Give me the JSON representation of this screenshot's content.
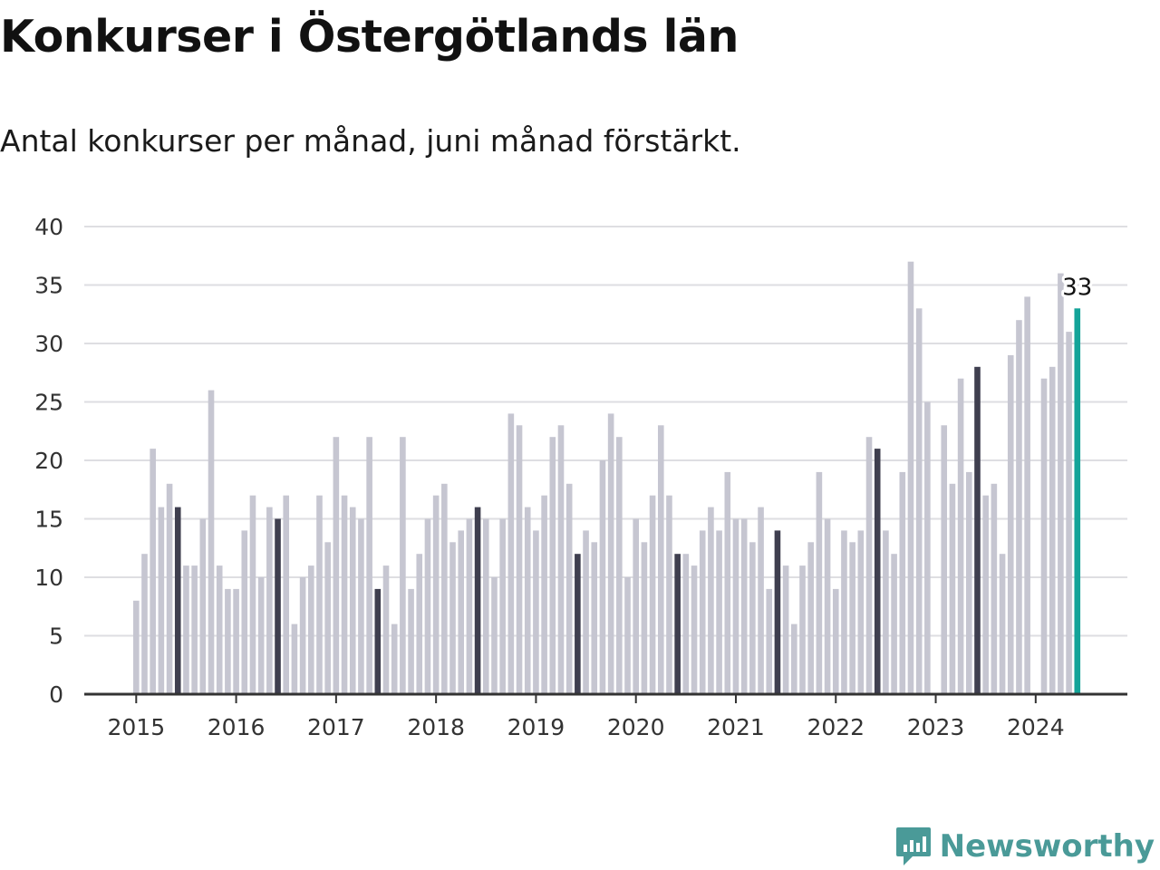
{
  "header": {
    "title": "Konkurser i Östergötlands län",
    "subtitle": "Antal konkurser per månad, juni månad förstärkt."
  },
  "logo": {
    "text": "Newsworthy",
    "icon": "newsworthy-chart-bubble-icon"
  },
  "colors": {
    "normal": "#c6c6d1",
    "june": "#3f3f4f",
    "latest": "#14a499",
    "grid": "#dedee2",
    "axis": "#333333"
  },
  "chart_data": {
    "type": "bar",
    "y_ticks": [
      "0",
      "5",
      "10",
      "15",
      "20",
      "25",
      "30",
      "35",
      "40"
    ],
    "x_ticks": [
      "2015",
      "2016",
      "2017",
      "2018",
      "2019",
      "2020",
      "2021",
      "2022",
      "2023",
      "2024"
    ],
    "ylim": [
      0,
      40
    ],
    "grid": true,
    "highlight": "juni",
    "start": "2015-01",
    "end": "2024-06",
    "values": [
      8,
      12,
      21,
      16,
      18,
      16,
      11,
      11,
      15,
      26,
      11,
      9,
      9,
      14,
      17,
      10,
      16,
      15,
      17,
      6,
      10,
      11,
      17,
      13,
      22,
      17,
      16,
      15,
      22,
      9,
      11,
      6,
      22,
      9,
      12,
      15,
      17,
      18,
      13,
      14,
      15,
      16,
      15,
      10,
      15,
      24,
      23,
      16,
      14,
      17,
      22,
      23,
      18,
      12,
      14,
      13,
      20,
      24,
      22,
      10,
      15,
      13,
      17,
      23,
      17,
      12,
      12,
      11,
      14,
      16,
      14,
      19,
      15,
      15,
      13,
      16,
      9,
      14,
      11,
      6,
      11,
      13,
      19,
      15,
      9,
      14,
      13,
      14,
      22,
      21,
      14,
      12,
      19,
      37,
      33,
      25,
      0,
      23,
      18,
      27,
      19,
      28,
      17,
      18,
      12,
      29,
      32,
      34,
      0,
      27,
      28,
      36,
      31,
      33
    ],
    "last_value_label": "33"
  }
}
